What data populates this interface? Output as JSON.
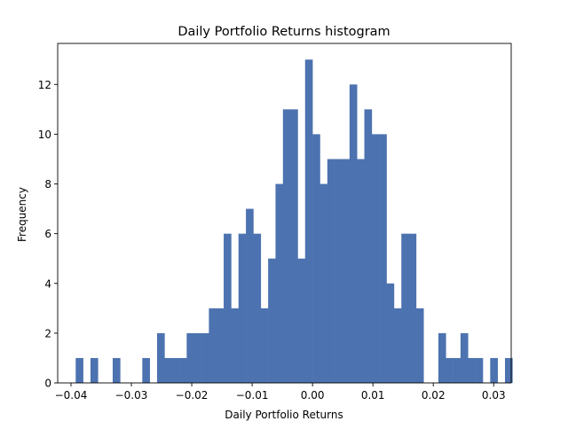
{
  "chart_data": {
    "type": "bar",
    "title": "Daily Portfolio Returns histogram",
    "xlabel": "Daily Portfolio Returns",
    "ylabel": "Frequency",
    "xlim": [
      -0.0422,
      0.0329
    ],
    "ylim": [
      0,
      13.65
    ],
    "grid": false,
    "bar_color": "#4c72b0",
    "bin_width": 0.001225,
    "bins": [
      {
        "x0": -0.03922,
        "count": 1
      },
      {
        "x0": -0.03677,
        "count": 1
      },
      {
        "x0": -0.03309,
        "count": 1
      },
      {
        "x0": -0.02819,
        "count": 1
      },
      {
        "x0": -0.02574,
        "count": 2
      },
      {
        "x0": -0.02451,
        "count": 1
      },
      {
        "x0": -0.02329,
        "count": 1
      },
      {
        "x0": -0.02206,
        "count": 1
      },
      {
        "x0": -0.02084,
        "count": 2
      },
      {
        "x0": -0.01961,
        "count": 2
      },
      {
        "x0": -0.01838,
        "count": 2
      },
      {
        "x0": -0.01716,
        "count": 3
      },
      {
        "x0": -0.01593,
        "count": 3
      },
      {
        "x0": -0.01471,
        "count": 6
      },
      {
        "x0": -0.01348,
        "count": 3
      },
      {
        "x0": -0.01226,
        "count": 6
      },
      {
        "x0": -0.01103,
        "count": 7
      },
      {
        "x0": -0.0098,
        "count": 6
      },
      {
        "x0": -0.00858,
        "count": 3
      },
      {
        "x0": -0.00735,
        "count": 5
      },
      {
        "x0": -0.00613,
        "count": 8
      },
      {
        "x0": -0.0049,
        "count": 11
      },
      {
        "x0": -0.00368,
        "count": 11
      },
      {
        "x0": -0.00245,
        "count": 5
      },
      {
        "x0": -0.00123,
        "count": 13
      },
      {
        "x0": 0.0,
        "count": 10
      },
      {
        "x0": 0.00123,
        "count": 8
      },
      {
        "x0": 0.00245,
        "count": 9
      },
      {
        "x0": 0.00368,
        "count": 9
      },
      {
        "x0": 0.0049,
        "count": 9
      },
      {
        "x0": 0.00613,
        "count": 12
      },
      {
        "x0": 0.00735,
        "count": 9
      },
      {
        "x0": 0.00858,
        "count": 11
      },
      {
        "x0": 0.0098,
        "count": 10
      },
      {
        "x0": 0.01103,
        "count": 10
      },
      {
        "x0": 0.01226,
        "count": 4
      },
      {
        "x0": 0.01348,
        "count": 3
      },
      {
        "x0": 0.01471,
        "count": 6
      },
      {
        "x0": 0.01593,
        "count": 6
      },
      {
        "x0": 0.01716,
        "count": 3
      },
      {
        "x0": 0.02084,
        "count": 2
      },
      {
        "x0": 0.02206,
        "count": 1
      },
      {
        "x0": 0.02329,
        "count": 1
      },
      {
        "x0": 0.02451,
        "count": 2
      },
      {
        "x0": 0.02574,
        "count": 1
      },
      {
        "x0": 0.02697,
        "count": 1
      },
      {
        "x0": 0.02942,
        "count": 1
      },
      {
        "x0": 0.03187,
        "count": 1
      }
    ],
    "x_ticks": [
      {
        "value": -0.04,
        "label": "−0.04"
      },
      {
        "value": -0.03,
        "label": "−0.03"
      },
      {
        "value": -0.02,
        "label": "−0.02"
      },
      {
        "value": -0.01,
        "label": "−0.01"
      },
      {
        "value": 0.0,
        "label": "0.00"
      },
      {
        "value": 0.01,
        "label": "0.01"
      },
      {
        "value": 0.02,
        "label": "0.02"
      },
      {
        "value": 0.03,
        "label": "0.03"
      }
    ],
    "y_ticks": [
      {
        "value": 0,
        "label": "0"
      },
      {
        "value": 2,
        "label": "2"
      },
      {
        "value": 4,
        "label": "4"
      },
      {
        "value": 6,
        "label": "6"
      },
      {
        "value": 8,
        "label": "8"
      },
      {
        "value": 10,
        "label": "10"
      },
      {
        "value": 12,
        "label": "12"
      }
    ]
  }
}
